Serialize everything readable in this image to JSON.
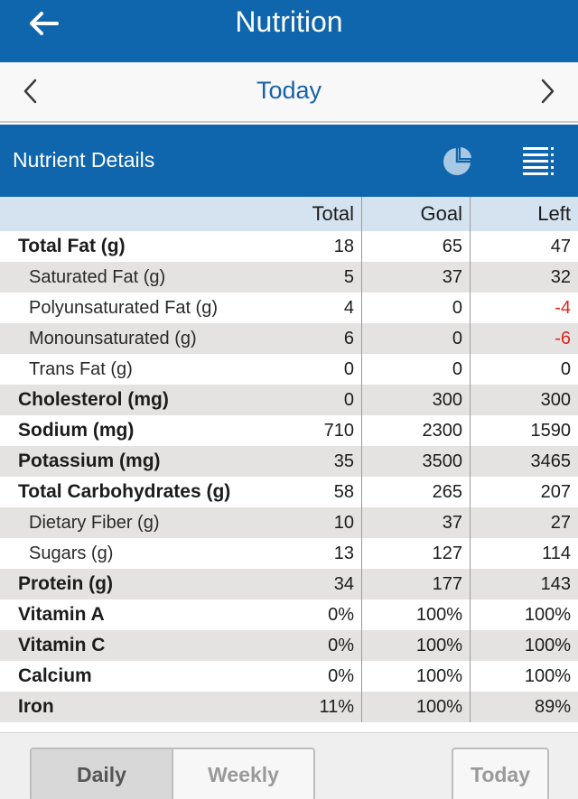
{
  "header": {
    "title": "Nutrition",
    "back_icon": "back-arrow-icon"
  },
  "date_nav": {
    "label": "Today",
    "prev_icon": "chevron-left-icon",
    "next_icon": "chevron-right-icon"
  },
  "section": {
    "label": "Nutrient Details",
    "pie_icon": "pie-chart-icon",
    "list_icon": "list-icon"
  },
  "table": {
    "columns": [
      "Total",
      "Goal",
      "Left"
    ],
    "rows": [
      {
        "name": "Total Fat (g)",
        "total": "18",
        "goal": "65",
        "left": "47"
      },
      {
        "name": "Saturated Fat (g)",
        "total": "5",
        "goal": "37",
        "left": "32"
      },
      {
        "name": "Polyunsaturated Fat (g)",
        "total": "4",
        "goal": "0",
        "left": "-4"
      },
      {
        "name": "Monounsaturated (g)",
        "total": "6",
        "goal": "0",
        "left": "-6"
      },
      {
        "name": "Trans Fat (g)",
        "total": "0",
        "goal": "0",
        "left": "0"
      },
      {
        "name": "Cholesterol (mg)",
        "total": "0",
        "goal": "300",
        "left": "300"
      },
      {
        "name": "Sodium (mg)",
        "total": "710",
        "goal": "2300",
        "left": "1590"
      },
      {
        "name": "Potassium (mg)",
        "total": "35",
        "goal": "3500",
        "left": "3465"
      },
      {
        "name": "Total Carbohydrates (g)",
        "total": "58",
        "goal": "265",
        "left": "207"
      },
      {
        "name": "Dietary Fiber (g)",
        "total": "10",
        "goal": "37",
        "left": "27"
      },
      {
        "name": "Sugars (g)",
        "total": "13",
        "goal": "127",
        "left": "114"
      },
      {
        "name": "Protein (g)",
        "total": "34",
        "goal": "177",
        "left": "143"
      },
      {
        "name": "Vitamin A",
        "total": "0%",
        "goal": "100%",
        "left": "100%"
      },
      {
        "name": "Vitamin C",
        "total": "0%",
        "goal": "100%",
        "left": "100%"
      },
      {
        "name": "Calcium",
        "total": "0%",
        "goal": "100%",
        "left": "100%"
      },
      {
        "name": "Iron",
        "total": "11%",
        "goal": "100%",
        "left": "89%"
      }
    ]
  },
  "footer": {
    "daily_label": "Daily",
    "weekly_label": "Weekly",
    "today_label": "Today"
  },
  "colors": {
    "brand_blue": "#0f66ad",
    "header_row": "#d5e2ef",
    "negative": "#e0251f"
  }
}
